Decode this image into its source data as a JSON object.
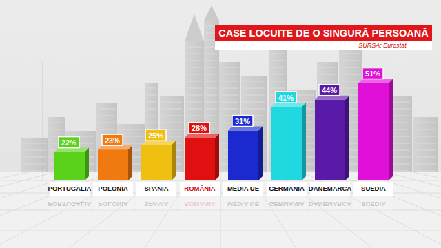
{
  "chart_data": {
    "type": "bar",
    "title": "CASE LOCUITE DE O SINGURĂ PERSOANĂ",
    "subtitle": "SURSA: Eurostat",
    "categories": [
      "PORTUGALIA",
      "POLONIA",
      "SPANIA",
      "ROMÂNIA",
      "MEDIA UE",
      "GERMANIA",
      "DANEMARCA",
      "SUEDIA"
    ],
    "values": [
      22,
      23,
      25,
      28,
      31,
      41,
      44,
      51
    ],
    "value_labels": [
      "22%",
      "23%",
      "25%",
      "28%",
      "31%",
      "41%",
      "44%",
      "51%"
    ],
    "colors": [
      "#5ad21a",
      "#f07a10",
      "#f0c010",
      "#e01010",
      "#1a2ad0",
      "#20d8e0",
      "#5a1aa8",
      "#e010d8"
    ],
    "ylim": [
      10,
      60
    ],
    "yticks": [],
    "data_labels": true,
    "tick_labels": "x"
  }
}
